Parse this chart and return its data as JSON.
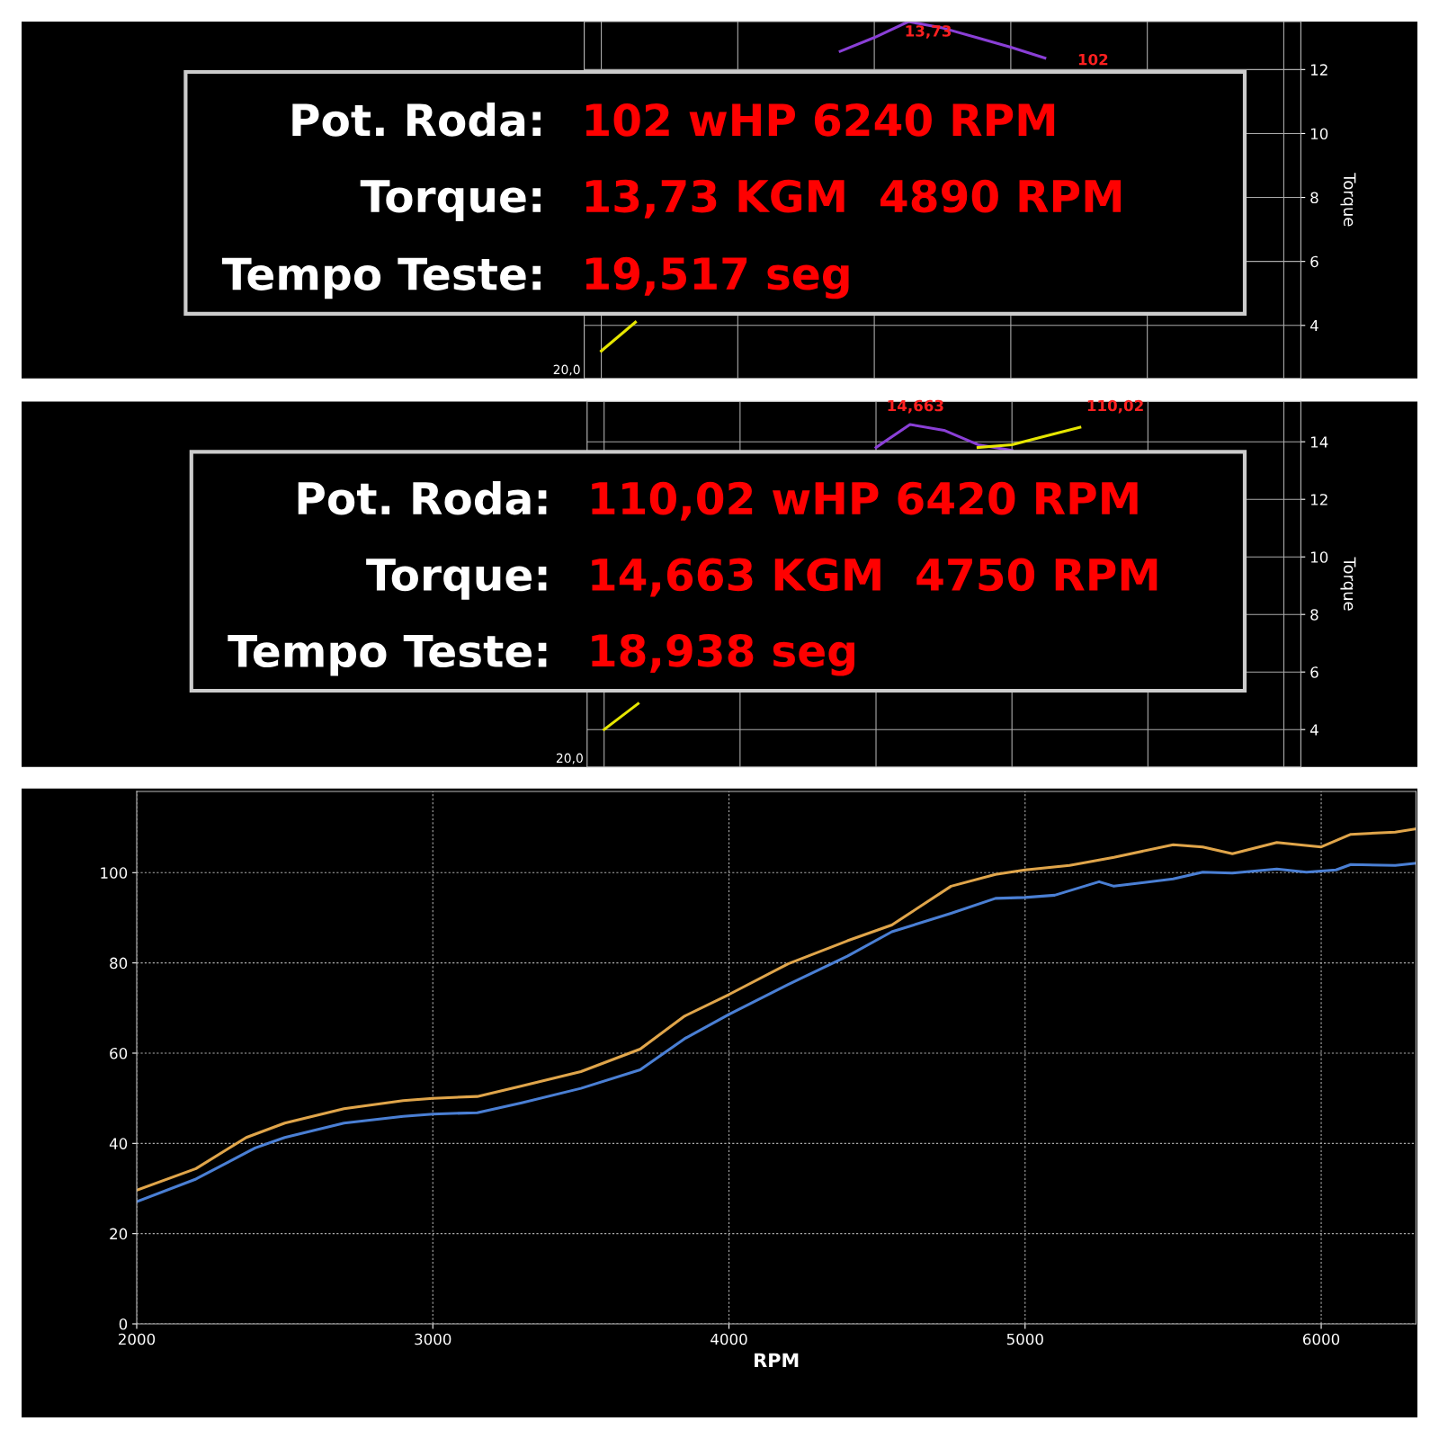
{
  "chart_data": [
    {
      "type": "line",
      "ylabel": "Torque",
      "ylim": [
        2.34,
        13.5
      ],
      "yticks": [
        4,
        6,
        8,
        10,
        12
      ],
      "grid": true,
      "tick_labels": "y",
      "marker": "none",
      "line_style": "solid",
      "categories": [
        null,
        null,
        null,
        null,
        null,
        null,
        null,
        null,
        null,
        null,
        null,
        null,
        null,
        null,
        null,
        null,
        null,
        null,
        null,
        null,
        null
      ],
      "series": [
        {
          "color": "#8a3fd6",
          "values": [
            null,
            null,
            null,
            null,
            null,
            null,
            null,
            12.57,
            13.0,
            13.5,
            13.3,
            13.0,
            12.7,
            12.36,
            null,
            null,
            null,
            null,
            null,
            null,
            null
          ]
        },
        {
          "color": "#e6e600",
          "values": [
            3.2,
            4.1,
            null,
            null,
            null,
            null,
            null,
            null,
            null,
            null,
            null,
            null,
            null,
            null,
            null,
            null,
            null,
            null,
            null,
            null,
            null
          ]
        }
      ],
      "annotations": [
        "Pot. Roda:",
        "102 wHP 6240 RPM",
        "Torque:",
        "13,73 KGM  4890 RPM",
        "Tempo Teste:",
        "19,517 seg",
        "13,73",
        "102",
        "20,0"
      ]
    },
    {
      "type": "line",
      "ylabel": "Torque",
      "ylim": [
        2.7,
        15.4
      ],
      "yticks": [
        4,
        6,
        8,
        10,
        12,
        14
      ],
      "grid": true,
      "tick_labels": "y",
      "marker": "none",
      "line_style": "solid",
      "categories": [
        null,
        null,
        null,
        null,
        null,
        null,
        null,
        null,
        null,
        null,
        null,
        null,
        null,
        null,
        null,
        null,
        null,
        null,
        null,
        null,
        null
      ],
      "series": [
        {
          "color": "#8a3fd6",
          "values": [
            null,
            null,
            null,
            null,
            null,
            null,
            null,
            null,
            13.8,
            14.6,
            14.4,
            13.9,
            13.7,
            null,
            null,
            null,
            null,
            null,
            null,
            null,
            null
          ]
        },
        {
          "color": "#e6e600",
          "values": [
            4.0,
            4.9,
            null,
            null,
            null,
            null,
            null,
            null,
            null,
            null,
            null,
            13.8,
            13.9,
            14.2,
            14.5,
            null,
            null,
            null,
            null,
            null,
            null
          ]
        }
      ],
      "annotations": [
        "Pot. Roda:",
        "110,02 wHP 6420 RPM",
        "Torque:",
        "14,663 KGM  4750 RPM",
        "Tempo Teste:",
        "18,938 seg",
        "14,663",
        "110,02",
        "20,0"
      ]
    },
    {
      "type": "line",
      "xlabel": "RPM",
      "xlim": [
        2000,
        6320
      ],
      "ylim": [
        0,
        118
      ],
      "xticks": [
        2000,
        3000,
        4000,
        5000,
        6000
      ],
      "yticks": [
        0,
        20,
        40,
        60,
        80,
        100
      ],
      "grid": true,
      "line_style": "solid",
      "marker": "none",
      "series": [
        {
          "color": "#e0a54a",
          "x": [
            2000,
            2200,
            2370,
            2500,
            2700,
            2900,
            3000,
            3150,
            3300,
            3500,
            3700,
            3850,
            4000,
            4200,
            4400,
            4550,
            4750,
            4900,
            5000,
            5150,
            5300,
            5500,
            5600,
            5700,
            5850,
            6000,
            6100,
            6250,
            6320
          ],
          "values": [
            29.6,
            34.4,
            41.3,
            44.5,
            47.7,
            49.5,
            50,
            50.4,
            52.7,
            55.9,
            60.9,
            68.2,
            73,
            79.8,
            84.9,
            88.4,
            97,
            99.6,
            100.6,
            101.6,
            103.4,
            106.2,
            105.7,
            104.2,
            106.7,
            105.7,
            108.5,
            109,
            109.7
          ]
        },
        {
          "color": "#4a7fd4",
          "x": [
            2000,
            2200,
            2400,
            2500,
            2700,
            2900,
            3000,
            3150,
            3300,
            3500,
            3700,
            3850,
            4000,
            4200,
            4400,
            4550,
            4750,
            4900,
            5000,
            5100,
            5250,
            5300,
            5500,
            5600,
            5700,
            5850,
            5950,
            6050,
            6100,
            6250,
            6320
          ],
          "values": [
            27.1,
            32.1,
            39,
            41.3,
            44.5,
            46,
            46.5,
            46.8,
            49,
            52.2,
            56.3,
            63.2,
            68.6,
            75.2,
            81.5,
            86.9,
            91,
            94.3,
            94.5,
            95,
            98,
            97,
            98.6,
            100.1,
            99.9,
            100.8,
            100.1,
            100.6,
            101.8,
            101.6,
            102.1
          ]
        }
      ]
    }
  ]
}
